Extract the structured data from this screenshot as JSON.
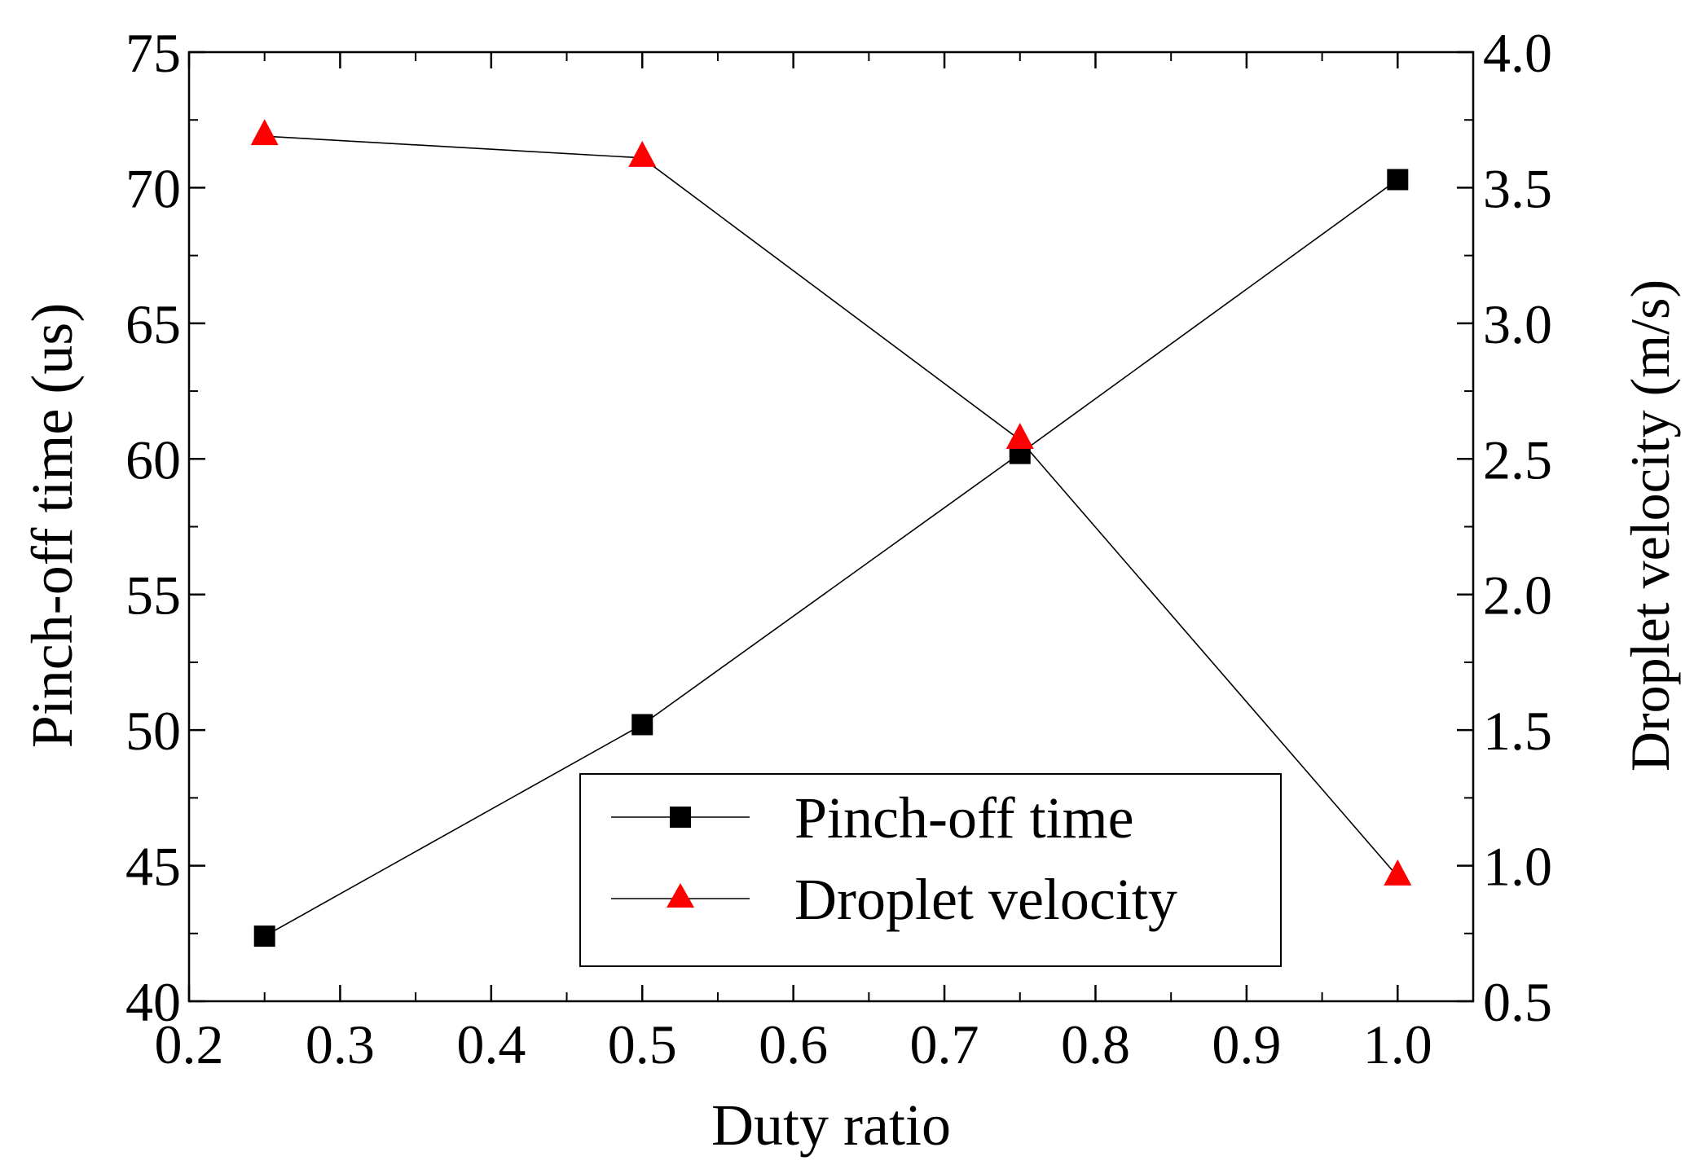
{
  "chart_data": {
    "type": "line",
    "title": "",
    "xlabel": "Duty ratio",
    "ylabel_left": "Pinch-off time (us)",
    "ylabel_right": "Droplet velocity (m/s)",
    "xlim": [
      0.2,
      1.05
    ],
    "ylim_left": [
      40,
      75
    ],
    "ylim_right": [
      0.5,
      4.0
    ],
    "x_ticks": [
      "0.2",
      "0.3",
      "0.4",
      "0.5",
      "0.6",
      "0.7",
      "0.8",
      "0.9",
      "1.0"
    ],
    "y_left_ticks": [
      "40",
      "45",
      "50",
      "55",
      "60",
      "65",
      "70",
      "75"
    ],
    "y_right_ticks": [
      "0.5",
      "1.0",
      "1.5",
      "2.0",
      "2.5",
      "3.0",
      "3.5",
      "4.0"
    ],
    "legend_position": "bottom-right",
    "series": [
      {
        "name": "Pinch-off time",
        "axis": "left",
        "marker": "square",
        "marker_color": "#000000",
        "line_color": "#000000",
        "x": [
          0.25,
          0.5,
          0.75,
          1.0
        ],
        "y": [
          42.4,
          50.2,
          60.2,
          70.3
        ]
      },
      {
        "name": "Droplet velocity",
        "axis": "right",
        "marker": "triangle",
        "marker_color": "#ff0000",
        "line_color": "#000000",
        "x": [
          0.25,
          0.5,
          0.75,
          1.0
        ],
        "y": [
          3.69,
          3.61,
          2.57,
          0.96
        ]
      }
    ]
  }
}
